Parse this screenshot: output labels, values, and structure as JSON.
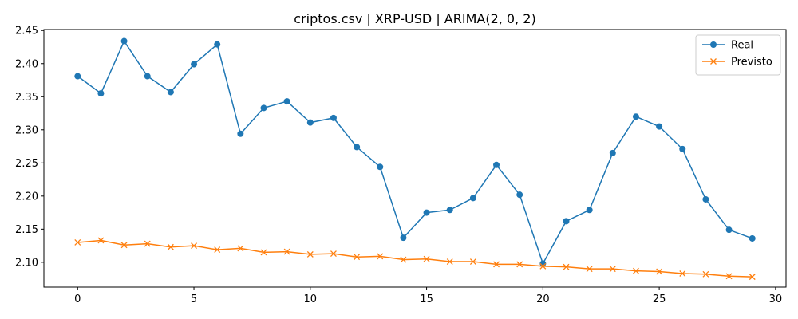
{
  "chart_data": {
    "type": "line",
    "title": "criptos.csv | XRP-USD | ARIMA(2, 0, 2)",
    "xlabel": "",
    "ylabel": "",
    "xlim": [
      -1.45,
      30.45
    ],
    "ylim": [
      2.0625,
      2.4515
    ],
    "xticks": [
      0,
      5,
      10,
      15,
      20,
      25,
      30
    ],
    "yticks": [
      2.1,
      2.15,
      2.2,
      2.25,
      2.3,
      2.35,
      2.4,
      2.45
    ],
    "grid": false,
    "legend_position": "top-right",
    "x": [
      0,
      1,
      2,
      3,
      4,
      5,
      6,
      7,
      8,
      9,
      10,
      11,
      12,
      13,
      14,
      15,
      16,
      17,
      18,
      19,
      20,
      21,
      22,
      23,
      24,
      25,
      26,
      27,
      28,
      29
    ],
    "series": [
      {
        "name": "Real",
        "color": "#1f77b4",
        "marker": "circle",
        "values": [
          2.381,
          2.355,
          2.434,
          2.381,
          2.357,
          2.399,
          2.429,
          2.294,
          2.333,
          2.343,
          2.311,
          2.318,
          2.274,
          2.244,
          2.137,
          2.175,
          2.179,
          2.197,
          2.247,
          2.202,
          2.098,
          2.162,
          2.179,
          2.265,
          2.32,
          2.305,
          2.271,
          2.195,
          2.149,
          2.136
        ]
      },
      {
        "name": "Previsto",
        "color": "#ff7f0e",
        "marker": "x",
        "values": [
          2.13,
          2.133,
          2.126,
          2.128,
          2.123,
          2.125,
          2.119,
          2.121,
          2.115,
          2.116,
          2.112,
          2.113,
          2.108,
          2.109,
          2.104,
          2.105,
          2.101,
          2.101,
          2.097,
          2.097,
          2.094,
          2.093,
          2.09,
          2.09,
          2.087,
          2.086,
          2.083,
          2.082,
          2.079,
          2.078
        ]
      }
    ]
  }
}
